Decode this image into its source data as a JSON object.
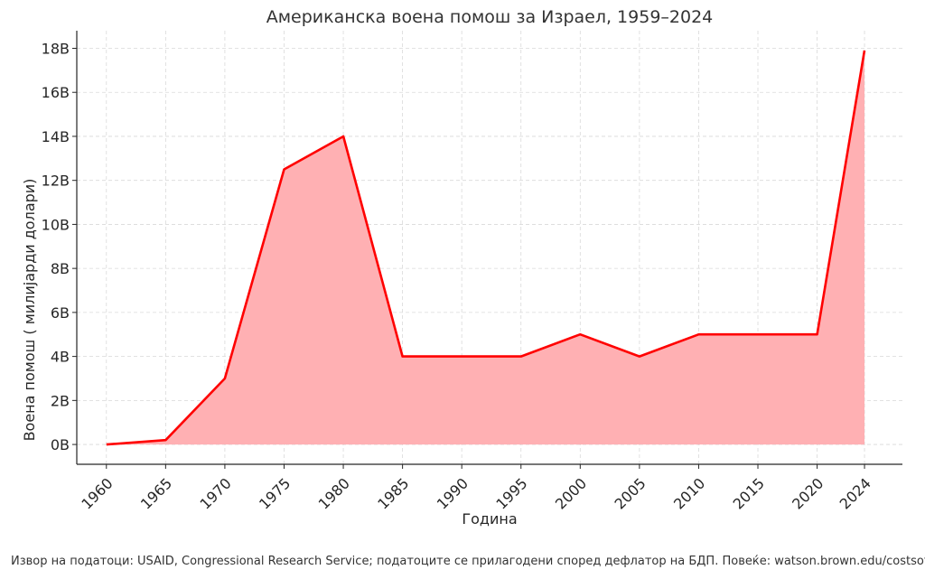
{
  "chart_data": {
    "type": "area",
    "title": "Американска воена помош за Израел, 1959–2024",
    "xlabel": "Година",
    "ylabel": "Воена помош ( милијарди долари)",
    "x": [
      1960,
      1965,
      1970,
      1975,
      1980,
      1985,
      1990,
      1995,
      2000,
      2005,
      2010,
      2015,
      2020,
      2024
    ],
    "x_tick_labels": [
      "1960",
      "1965",
      "1970",
      "1975",
      "1980",
      "1985",
      "1990",
      "1995",
      "2000",
      "2005",
      "2010",
      "2015",
      "2020",
      "2024"
    ],
    "series": [
      {
        "values": [
          0,
          0.2,
          3,
          12.5,
          14,
          4,
          4,
          4,
          5,
          4,
          5,
          5,
          5,
          17.9
        ]
      }
    ],
    "y_ticks": [
      0,
      2,
      4,
      6,
      8,
      10,
      12,
      14,
      16,
      18
    ],
    "y_tick_labels": [
      "0B",
      "2B",
      "4B",
      "6B",
      "8B",
      "10B",
      "12B",
      "14B",
      "16B",
      "18B"
    ],
    "ylim": [
      -0.9,
      18.8
    ],
    "grid": true,
    "colors": {
      "line": "#ff0000",
      "fill": "#ffb0b3",
      "grid": "#d9d9d9"
    }
  },
  "source": "Извор на податоци: USAID, Congressional Research Service; податоците се прилагодени според дефлатор на БДП. Повеќе: watson.brown.edu/costsofwar"
}
